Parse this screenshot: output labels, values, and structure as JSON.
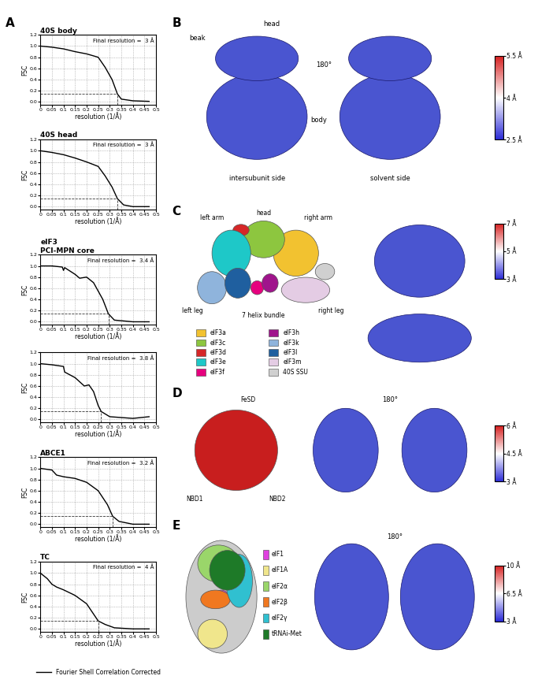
{
  "chart_data": [
    {
      "type": "line",
      "title": "40S body",
      "annotation": "Final resolution =  3 Å",
      "x_label": "resolution (1/Å)",
      "y_label": "FSC",
      "xlim": [
        0,
        0.5
      ],
      "xticks": [
        0,
        0.05,
        0.1,
        0.15,
        0.2,
        0.25,
        0.3,
        0.35,
        0.4,
        0.45,
        0.5
      ],
      "ylim": [
        -0.05,
        1.2
      ],
      "yticks": [
        0.0,
        0.2,
        0.4,
        0.6,
        0.8,
        1.0,
        1.2
      ],
      "grid": true,
      "x": [
        0,
        0.05,
        0.1,
        0.15,
        0.2,
        0.25,
        0.28,
        0.31,
        0.333,
        0.35,
        0.4,
        0.47
      ],
      "series": [
        {
          "name": "Fourier Shell Correlation Corrected",
          "color": "#000000",
          "values": [
            1.0,
            0.98,
            0.95,
            0.9,
            0.86,
            0.8,
            0.62,
            0.4,
            0.143,
            0.05,
            0.02,
            0.01
          ]
        }
      ],
      "cutoff": {
        "fsc": 0.143,
        "resolution": 0.333
      }
    },
    {
      "type": "line",
      "title": "40S head",
      "annotation": "Final resolution =  3 Å",
      "x_label": "resolution (1/Å)",
      "y_label": "FSC",
      "xlim": [
        0,
        0.5
      ],
      "xticks": [
        0,
        0.05,
        0.1,
        0.15,
        0.2,
        0.25,
        0.3,
        0.35,
        0.4,
        0.45,
        0.5
      ],
      "ylim": [
        -0.05,
        1.2
      ],
      "yticks": [
        0.0,
        0.2,
        0.4,
        0.6,
        0.8,
        1.0,
        1.2
      ],
      "grid": true,
      "x": [
        0,
        0.05,
        0.1,
        0.15,
        0.2,
        0.25,
        0.28,
        0.31,
        0.333,
        0.36,
        0.4,
        0.47
      ],
      "series": [
        {
          "name": "Fourier Shell Correlation Corrected",
          "color": "#000000",
          "values": [
            1.0,
            0.97,
            0.93,
            0.87,
            0.8,
            0.72,
            0.55,
            0.35,
            0.143,
            0.03,
            0.0,
            0.0
          ]
        }
      ],
      "cutoff": {
        "fsc": 0.143,
        "resolution": 0.333
      }
    },
    {
      "type": "line",
      "title": "eIF3\nPCI-MPN core",
      "annotation": "Final resolution =  3.4 Å",
      "x_label": "resolution (1/Å)",
      "y_label": "FSC",
      "xlim": [
        0,
        0.5
      ],
      "xticks": [
        0,
        0.05,
        0.1,
        0.15,
        0.2,
        0.25,
        0.3,
        0.35,
        0.4,
        0.45,
        0.5
      ],
      "ylim": [
        -0.05,
        1.2
      ],
      "yticks": [
        0.0,
        0.2,
        0.4,
        0.6,
        0.8,
        1.0,
        1.2
      ],
      "grid": true,
      "x": [
        0,
        0.05,
        0.095,
        0.1,
        0.105,
        0.15,
        0.17,
        0.2,
        0.23,
        0.27,
        0.294,
        0.32,
        0.4,
        0.47
      ],
      "series": [
        {
          "name": "Fourier Shell Correlation Corrected",
          "color": "#000000",
          "values": [
            1.0,
            1.0,
            0.98,
            0.92,
            0.97,
            0.85,
            0.78,
            0.8,
            0.7,
            0.4,
            0.143,
            0.03,
            0.0,
            0.0
          ]
        }
      ],
      "cutoff": {
        "fsc": 0.143,
        "resolution": 0.294
      }
    },
    {
      "type": "line",
      "annotation": "Final resolution =  3.8 Å",
      "x_label": "resolution (1/Å)",
      "y_label": "FSC",
      "xlim": [
        0,
        0.5
      ],
      "xticks": [
        0,
        0.05,
        0.1,
        0.15,
        0.2,
        0.25,
        0.3,
        0.35,
        0.4,
        0.45,
        0.5
      ],
      "ylim": [
        -0.05,
        1.2
      ],
      "yticks": [
        0.0,
        0.2,
        0.4,
        0.6,
        0.8,
        1.0,
        1.2
      ],
      "grid": true,
      "x": [
        0,
        0.05,
        0.1,
        0.105,
        0.15,
        0.19,
        0.21,
        0.23,
        0.25,
        0.263,
        0.3,
        0.4,
        0.47
      ],
      "series": [
        {
          "name": "Fourier Shell Correlation Corrected",
          "color": "#000000",
          "values": [
            1.0,
            0.98,
            0.95,
            0.85,
            0.75,
            0.6,
            0.62,
            0.5,
            0.25,
            0.143,
            0.05,
            0.02,
            0.05
          ]
        }
      ],
      "cutoff": {
        "fsc": 0.143,
        "resolution": 0.263
      }
    },
    {
      "type": "line",
      "title": "ABCE1",
      "annotation": "Final resolution =  3.2 Å",
      "x_label": "resolution (1/Å)",
      "y_label": "FSC",
      "xlim": [
        0,
        0.5
      ],
      "xticks": [
        0,
        0.05,
        0.1,
        0.15,
        0.2,
        0.25,
        0.3,
        0.35,
        0.4,
        0.45,
        0.5
      ],
      "ylim": [
        -0.05,
        1.2
      ],
      "yticks": [
        0.0,
        0.2,
        0.4,
        0.6,
        0.8,
        1.0,
        1.2
      ],
      "grid": true,
      "x": [
        0,
        0.05,
        0.07,
        0.1,
        0.15,
        0.2,
        0.25,
        0.29,
        0.3125,
        0.34,
        0.4,
        0.47
      ],
      "series": [
        {
          "name": "Fourier Shell Correlation Corrected",
          "color": "#000000",
          "values": [
            1.0,
            0.97,
            0.88,
            0.85,
            0.82,
            0.75,
            0.6,
            0.35,
            0.143,
            0.05,
            0.0,
            0.0
          ]
        }
      ],
      "cutoff": {
        "fsc": 0.143,
        "resolution": 0.3125
      }
    },
    {
      "type": "line",
      "title": "TC",
      "annotation": "Final resolution =  4 Å",
      "x_label": "resolution (1/Å)",
      "y_label": "FSC",
      "xlim": [
        0,
        0.5
      ],
      "xticks": [
        0,
        0.05,
        0.1,
        0.15,
        0.2,
        0.25,
        0.3,
        0.35,
        0.4,
        0.45,
        0.5
      ],
      "ylim": [
        -0.05,
        1.2
      ],
      "yticks": [
        0.0,
        0.2,
        0.4,
        0.6,
        0.8,
        1.0,
        1.2
      ],
      "grid": true,
      "legend": "bottom",
      "x": [
        0,
        0.03,
        0.05,
        0.07,
        0.1,
        0.15,
        0.2,
        0.25,
        0.28,
        0.32,
        0.4,
        0.47
      ],
      "series": [
        {
          "name": "Fourier Shell Correlation Corrected",
          "color": "#000000",
          "values": [
            1.0,
            0.9,
            0.8,
            0.75,
            0.7,
            0.6,
            0.45,
            0.143,
            0.08,
            0.02,
            0.0,
            0.0
          ]
        }
      ],
      "cutoff": {
        "fsc": 0.143,
        "resolution": 0.25
      }
    }
  ],
  "panel_labels": [
    "A",
    "B",
    "C",
    "D",
    "E"
  ],
  "maps": {
    "B": {
      "labels": [
        "beak",
        "head",
        "body"
      ],
      "captions": [
        "intersubunit side",
        "solvent side"
      ],
      "rotation": "180°",
      "colorbar": {
        "range": [
          2.5,
          5.5
        ],
        "ticks": [
          {
            "value": 2.5,
            "label": "2.5 Å"
          },
          {
            "value": 4,
            "label": "4 Å"
          },
          {
            "value": 5.5,
            "label": "5.5 Å"
          }
        ]
      }
    },
    "C": {
      "labels": [
        "left arm",
        "head",
        "right arm",
        "left leg",
        "7 helix bundle",
        "right leg"
      ],
      "key": [
        {
          "name": "eIF3a",
          "color": "#f2c230"
        },
        {
          "name": "eIF3c",
          "color": "#8dc63f"
        },
        {
          "name": "eIF3d",
          "color": "#d62728"
        },
        {
          "name": "eIF3e",
          "color": "#1ec8c8"
        },
        {
          "name": "eIF3f",
          "color": "#e6007e"
        },
        {
          "name": "eIF3h",
          "color": "#a0148c"
        },
        {
          "name": "eIF3k",
          "color": "#8fb4dc"
        },
        {
          "name": "eIF3l",
          "color": "#1f5f9f"
        },
        {
          "name": "eIF3m",
          "color": "#e4cce4"
        },
        {
          "name": "40S SSU",
          "color": "#d0d0d0"
        }
      ],
      "colorbar": {
        "range": [
          3,
          7
        ],
        "ticks": [
          {
            "value": 3,
            "label": "3 Å"
          },
          {
            "value": 5,
            "label": "5 Å"
          },
          {
            "value": 7,
            "label": "7 Å"
          }
        ]
      }
    },
    "D": {
      "labels": [
        "FeSD",
        "NBD1",
        "NBD2"
      ],
      "model_color": "#c81e1e",
      "rotation": "180°",
      "colorbar": {
        "range": [
          3,
          6
        ],
        "ticks": [
          {
            "value": 3,
            "label": "3 Å"
          },
          {
            "value": 4.5,
            "label": "4.5 Å"
          },
          {
            "value": 6,
            "label": "6 Å"
          }
        ]
      }
    },
    "E": {
      "key": [
        {
          "name": "eIF1",
          "color": "#e040e0"
        },
        {
          "name": "eIF1A",
          "color": "#f0e68c"
        },
        {
          "name": "eIF2α",
          "color": "#9ad66a"
        },
        {
          "name": "eIF2β",
          "color": "#f07820"
        },
        {
          "name": "eIF2γ",
          "color": "#30c0d0"
        },
        {
          "name": "tRNAi-Met",
          "color": "#1e7a28"
        }
      ],
      "rotation": "180°",
      "colorbar": {
        "range": [
          3,
          10
        ],
        "ticks": [
          {
            "value": 3,
            "label": "3 Å"
          },
          {
            "value": 6.5,
            "label": "6.5 Å"
          },
          {
            "value": 10,
            "label": "10 Å"
          }
        ]
      }
    }
  }
}
